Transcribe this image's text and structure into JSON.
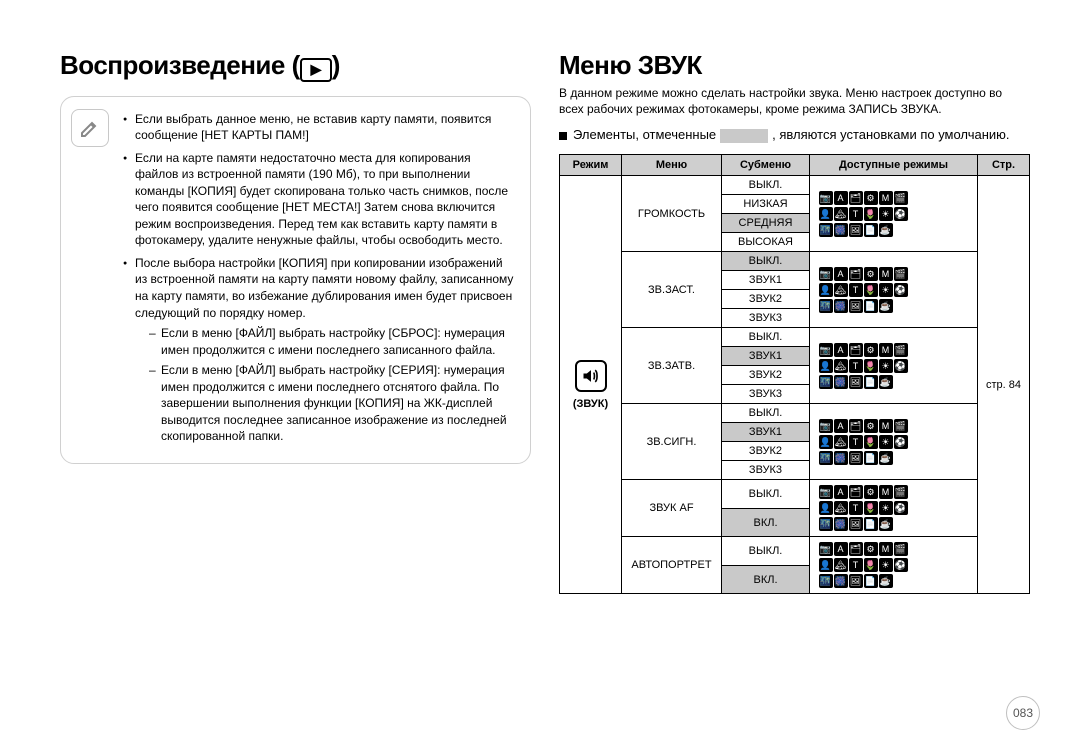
{
  "left": {
    "title": "Воспроизведение (",
    "title_after": ")",
    "play_glyph": "▶",
    "notes": [
      "Если выбрать данное меню, не вставив карту памяти, появится сообщение [НЕТ КАРТЫ ПАМ!]",
      "Если на карте памяти недостаточно места для копирования файлов из встроенной памяти (190 Мб), то при выполнении команды [КОПИЯ] будет скопирована только часть снимков, после чего появится сообщение [НЕТ МЕСТА!] Затем снова включится режим воспроизведения. Перед тем как вставить карту памяти в фотокамеру, удалите ненужные файлы, чтобы освободить место.",
      "После выбора настройки [КОПИЯ] при копировании изображений из встроенной памяти на карту памяти новому файлу, записанному на карту памяти, во избежание дублирования имен будет присвоен следующий по порядку номер."
    ],
    "subnotes": [
      "Если в меню [ФАЙЛ] выбрать настройку [СБРОС]: нумерация имен продолжится с имени последнего записанного файла.",
      "Если в меню [ФАЙЛ] выбрать настройку [СЕРИЯ]: нумерация имен продолжится с имени последнего отснятого файла. По завершении выполнения функции [КОПИЯ] на ЖК-дисплей выводится последнее записанное изображение из последней скопированной папки."
    ]
  },
  "right": {
    "title": "Меню ЗВУК",
    "intro": "В данном режиме можно сделать настройки звука. Меню настроек доступно во всех рабочих режимах фотокамеры, кроме режима ЗАПИСЬ ЗВУКА.",
    "defaults_prefix": "Элементы, отмеченные",
    "defaults_suffix": ", являются установками по умолчанию.",
    "headers": {
      "mode": "Режим",
      "menu": "Меню",
      "submenu": "Субменю",
      "modes": "Доступные режимы",
      "page": "Стр."
    },
    "mode_label": "(ЗВУК)",
    "page_ref": "стр. 84",
    "default_color": "#c9c9c9",
    "groups": [
      {
        "menu": "ГРОМКОСТЬ",
        "rows": [
          {
            "label": "ВЫКЛ.",
            "sel": false
          },
          {
            "label": "НИЗКАЯ",
            "sel": false
          },
          {
            "label": "СРЕДНЯЯ",
            "sel": true
          },
          {
            "label": "ВЫСОКАЯ",
            "sel": false
          }
        ],
        "icon_rows": 3
      },
      {
        "menu": "ЗВ.ЗАСТ.",
        "rows": [
          {
            "label": "ВЫКЛ.",
            "sel": true
          },
          {
            "label": "ЗВУК1",
            "sel": false
          },
          {
            "label": "ЗВУК2",
            "sel": false
          },
          {
            "label": "ЗВУК3",
            "sel": false
          }
        ],
        "icon_rows": 3
      },
      {
        "menu": "ЗВ.ЗАТВ.",
        "rows": [
          {
            "label": "ВЫКЛ.",
            "sel": false
          },
          {
            "label": "ЗВУК1",
            "sel": true
          },
          {
            "label": "ЗВУК2",
            "sel": false
          },
          {
            "label": "ЗВУК3",
            "sel": false
          }
        ],
        "icon_rows": 3
      },
      {
        "menu": "ЗВ.СИГН.",
        "rows": [
          {
            "label": "ВЫКЛ.",
            "sel": false
          },
          {
            "label": "ЗВУК1",
            "sel": true
          },
          {
            "label": "ЗВУК2",
            "sel": false
          },
          {
            "label": "ЗВУК3",
            "sel": false
          }
        ],
        "icon_rows": 3
      },
      {
        "menu": "ЗВУК AF",
        "rows": [
          {
            "label": "ВЫКЛ.",
            "sel": false
          },
          {
            "label": "ВКЛ.",
            "sel": true
          }
        ],
        "icon_rows": 3
      },
      {
        "menu": "АВТОПОРТРЕТ",
        "rows": [
          {
            "label": "ВЫКЛ.",
            "sel": false
          },
          {
            "label": "ВКЛ.",
            "sel": true
          }
        ],
        "icon_rows": 3
      }
    ],
    "mode_icons_long": [
      "📷",
      "A",
      "🗂",
      "⚙",
      "M",
      "🎬",
      "👤",
      "🏔",
      "T",
      "🌷",
      "☀",
      "⚽",
      "🌃",
      "🎆",
      "🖼",
      "📄",
      "☕"
    ],
    "mode_icons_short": [
      "📷",
      "A",
      "🗂",
      "⚙",
      "M",
      "🎬",
      "👤",
      "🏔",
      "T",
      "🌷",
      "☀",
      "⚽",
      "🌃",
      "🎆",
      "🖼",
      "📄",
      "☕"
    ]
  },
  "page_number": "083"
}
